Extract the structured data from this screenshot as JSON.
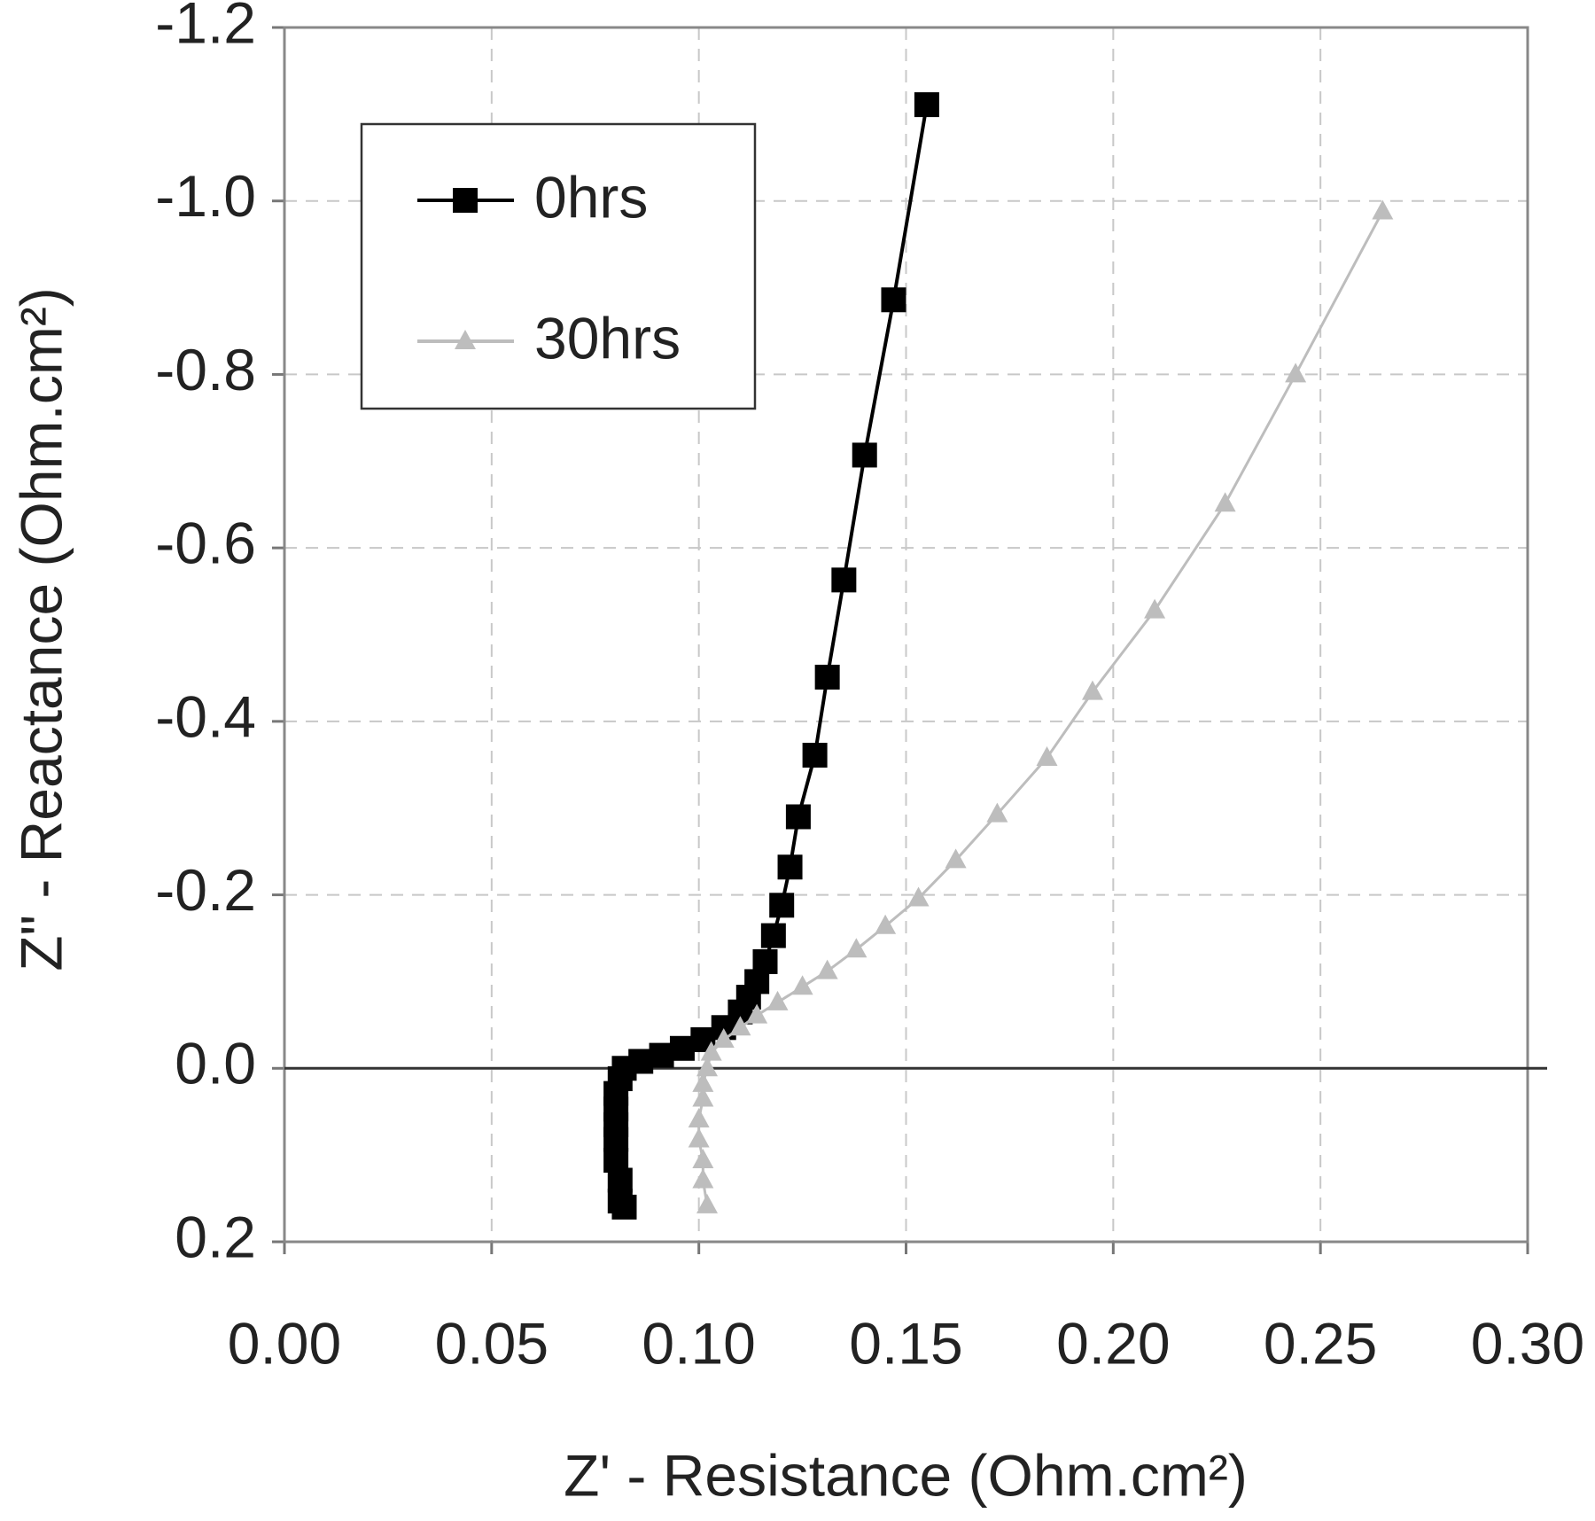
{
  "chart_data": {
    "type": "line",
    "xlabel": "Z' - Resistance (Ohm.cm²)",
    "ylabel": "Z\" - Reactance (Ohm.cm²)",
    "xlim": [
      0,
      0.3
    ],
    "xticks": [
      {
        "value": 0,
        "label": "0.00"
      },
      {
        "value": 0.05,
        "label": "0.05"
      },
      {
        "value": 0.1,
        "label": "0.10"
      },
      {
        "value": 0.15,
        "label": "0.15"
      },
      {
        "value": 0.2,
        "label": "0.20"
      },
      {
        "value": 0.25,
        "label": "0.25"
      },
      {
        "value": 0.3,
        "label": "0.30"
      }
    ],
    "ylim": [
      0.2,
      -1.2
    ],
    "yticks": [
      {
        "value": -1.2,
        "label": "-1.2"
      },
      {
        "value": -1,
        "label": "-1.0"
      },
      -0.8,
      -0.6,
      -0.4,
      -0.2,
      {
        "value": 0,
        "label": "0.0"
      },
      0.2
    ],
    "grid": true,
    "legend": "upper left",
    "series": [
      {
        "name": "0hrs",
        "color": "#000000",
        "marker": "square",
        "x": [
          0.155,
          0.147,
          0.14,
          0.135,
          0.131,
          0.128,
          0.124,
          0.122,
          0.12,
          0.118,
          0.116,
          0.114,
          0.112,
          0.11,
          0.106,
          0.101,
          0.096,
          0.091,
          0.086,
          0.082,
          0.081,
          0.08,
          0.08,
          0.08,
          0.08,
          0.08,
          0.081,
          0.081,
          0.082
        ],
        "values": [
          -1.111,
          -0.886,
          -0.707,
          -0.563,
          -0.451,
          -0.361,
          -0.29,
          -0.232,
          -0.188,
          -0.153,
          -0.123,
          -0.1,
          -0.082,
          -0.065,
          -0.047,
          -0.033,
          -0.023,
          -0.015,
          -0.008,
          0.0,
          0.012,
          0.029,
          0.047,
          0.065,
          0.082,
          0.106,
          0.129,
          0.153,
          0.16
        ]
      },
      {
        "name": "30hrs",
        "color": "#bdbdbd",
        "marker": "triangle",
        "x": [
          0.265,
          0.244,
          0.227,
          0.21,
          0.195,
          0.184,
          0.172,
          0.162,
          0.153,
          0.145,
          0.138,
          0.131,
          0.125,
          0.119,
          0.114,
          0.11,
          0.106,
          0.103,
          0.102,
          0.101,
          0.101,
          0.1,
          0.1,
          0.101,
          0.101,
          0.102
        ],
        "values": [
          -0.988,
          -0.8,
          -0.651,
          -0.528,
          -0.434,
          -0.358,
          -0.293,
          -0.24,
          -0.196,
          -0.164,
          -0.137,
          -0.112,
          -0.094,
          -0.076,
          -0.061,
          -0.047,
          -0.033,
          -0.018,
          0.0,
          0.018,
          0.035,
          0.059,
          0.082,
          0.106,
          0.129,
          0.158
        ]
      }
    ]
  }
}
